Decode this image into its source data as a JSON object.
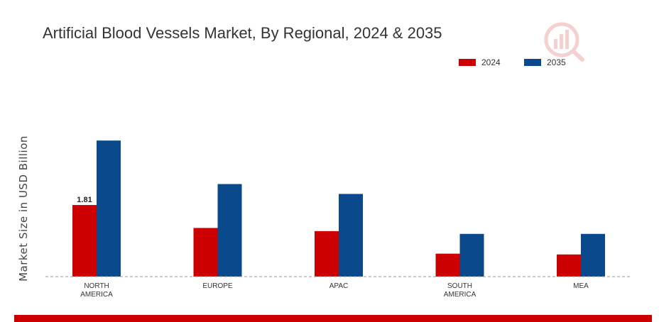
{
  "chart_data": {
    "type": "bar",
    "title": "Artificial Blood Vessels Market, By Regional, 2024 & 2035",
    "ylabel": "Market Size in USD Billion",
    "xlabel": "",
    "categories": [
      [
        "NORTH",
        "AMERICA"
      ],
      [
        "EUROPE"
      ],
      [
        "APAC"
      ],
      [
        "SOUTH",
        "AMERICA"
      ],
      [
        "MEA"
      ]
    ],
    "series": [
      {
        "name": "2024",
        "color": "#cc0000",
        "values": [
          1.81,
          1.23,
          1.15,
          0.58,
          0.56
        ]
      },
      {
        "name": "2035",
        "color": "#0a4a8c",
        "values": [
          3.44,
          2.34,
          2.09,
          1.08,
          1.08
        ]
      }
    ],
    "data_labels": [
      {
        "series": 0,
        "index": 0,
        "text": "1.81"
      }
    ],
    "ylim": [
      0,
      5.2
    ],
    "grid": false,
    "legend": "top-right",
    "baseline_style": "dashed"
  },
  "footer_bar_color": "#cc0000",
  "logo_icon": "market-research-logo-icon"
}
